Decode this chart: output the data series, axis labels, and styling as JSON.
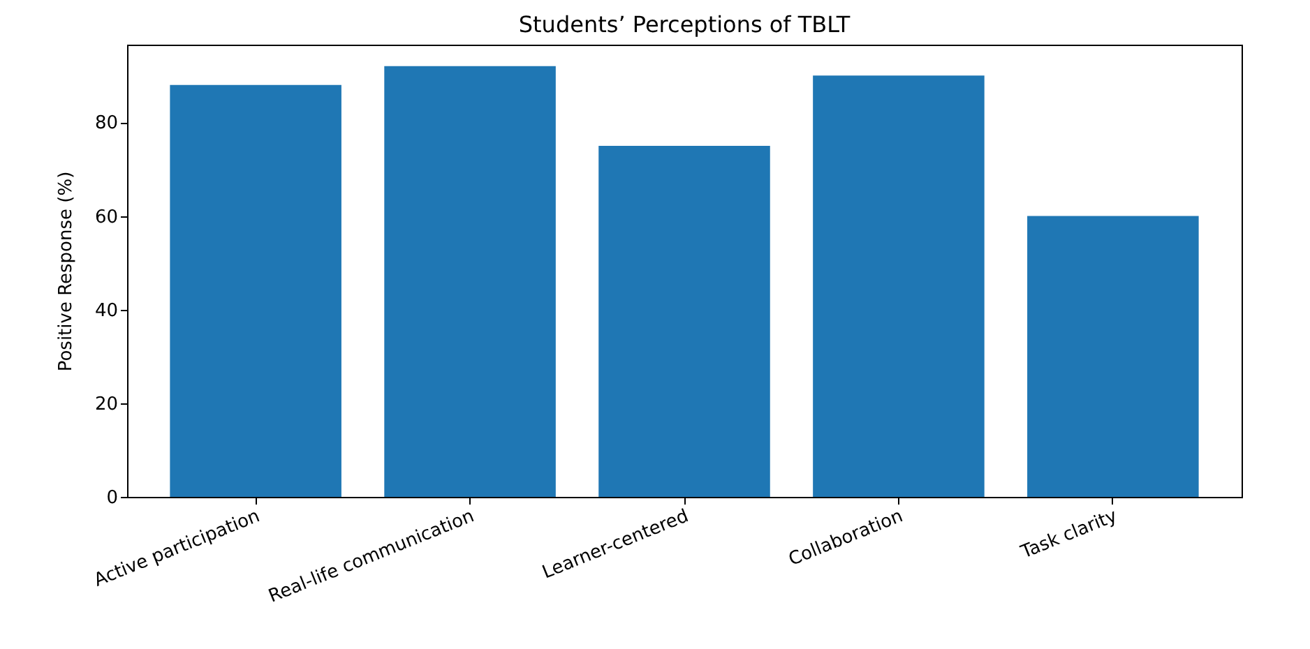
{
  "chart_data": {
    "type": "bar",
    "title": "Students’ Perceptions of TBLT",
    "ylabel": "Positive Response (%)",
    "categories": [
      "Active participation",
      "Real-life communication",
      "Learner-centered",
      "Collaboration",
      "Task clarity"
    ],
    "values": [
      88,
      92,
      75,
      90,
      60
    ],
    "color": "#1f77b4",
    "ylim": [
      0,
      96.6
    ],
    "yticks": [
      0,
      20,
      40,
      60,
      80
    ],
    "grid": false
  }
}
